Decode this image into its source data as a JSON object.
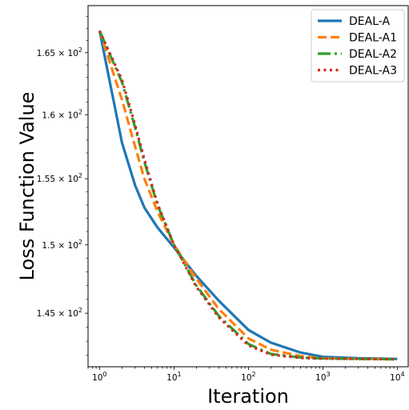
{
  "chart_data": {
    "type": "line",
    "xlabel": "Iteration",
    "ylabel": "Loss Function Value",
    "xscale": "log",
    "yscale": "log",
    "xlim": [
      0.7,
      14000
    ],
    "ylim": [
      141.2,
      168.9
    ],
    "x_ticks": [
      {
        "value": 1,
        "base": "10",
        "exp": "0"
      },
      {
        "value": 10,
        "base": "10",
        "exp": "1"
      },
      {
        "value": 100,
        "base": "10",
        "exp": "2"
      },
      {
        "value": 1000,
        "base": "10",
        "exp": "3"
      },
      {
        "value": 10000,
        "base": "10",
        "exp": "4"
      }
    ],
    "y_ticks": [
      {
        "value": 145,
        "mantissa": "1.45",
        "exp": "2"
      },
      {
        "value": 150,
        "mantissa": "1.5",
        "exp": "2"
      },
      {
        "value": 155,
        "mantissa": "1.55",
        "exp": "2"
      },
      {
        "value": 160,
        "mantissa": "1.6",
        "exp": "2"
      },
      {
        "value": 165,
        "mantissa": "1.65",
        "exp": "2"
      }
    ],
    "grid": false,
    "legend_position": "top-right",
    "series": [
      {
        "name": "DEAL-A",
        "color": "#1f77b4",
        "dash": "solid",
        "x": [
          1,
          2,
          3,
          4,
          6,
          10,
          20,
          40,
          100,
          200,
          500,
          1000,
          3000,
          10000
        ],
        "y": [
          166.8,
          157.8,
          154.5,
          152.8,
          151.3,
          149.8,
          147.7,
          145.9,
          143.8,
          142.9,
          142.2,
          141.9,
          141.8,
          141.75
        ]
      },
      {
        "name": "DEAL-A1",
        "color": "#ff7f0e",
        "dash": "dashed",
        "x": [
          1,
          2,
          3,
          4,
          6,
          10,
          20,
          40,
          100,
          200,
          500,
          1000,
          3000,
          10000
        ],
        "y": [
          166.8,
          161.2,
          157.5,
          155.0,
          152.5,
          150.0,
          147.5,
          145.3,
          143.2,
          142.4,
          141.95,
          141.8,
          141.75,
          141.72
        ]
      },
      {
        "name": "DEAL-A2",
        "color": "#2ca02c",
        "dash": "dashdot",
        "x": [
          1,
          2,
          3,
          4,
          6,
          10,
          20,
          40,
          100,
          200,
          500,
          1000,
          3000,
          10000
        ],
        "y": [
          166.8,
          162.6,
          159.0,
          156.3,
          153.0,
          150.0,
          147.0,
          144.8,
          142.8,
          142.1,
          141.85,
          141.78,
          141.75,
          141.73
        ]
      },
      {
        "name": "DEAL-A3",
        "color": "#d62728",
        "dash": "dotted",
        "x": [
          1,
          2,
          3,
          4,
          6,
          10,
          20,
          40,
          100,
          200,
          500,
          1000,
          3000,
          10000
        ],
        "y": [
          166.8,
          162.8,
          159.2,
          156.5,
          153.1,
          150.0,
          146.9,
          144.7,
          142.7,
          142.05,
          141.82,
          141.77,
          141.75,
          141.73
        ]
      }
    ]
  }
}
